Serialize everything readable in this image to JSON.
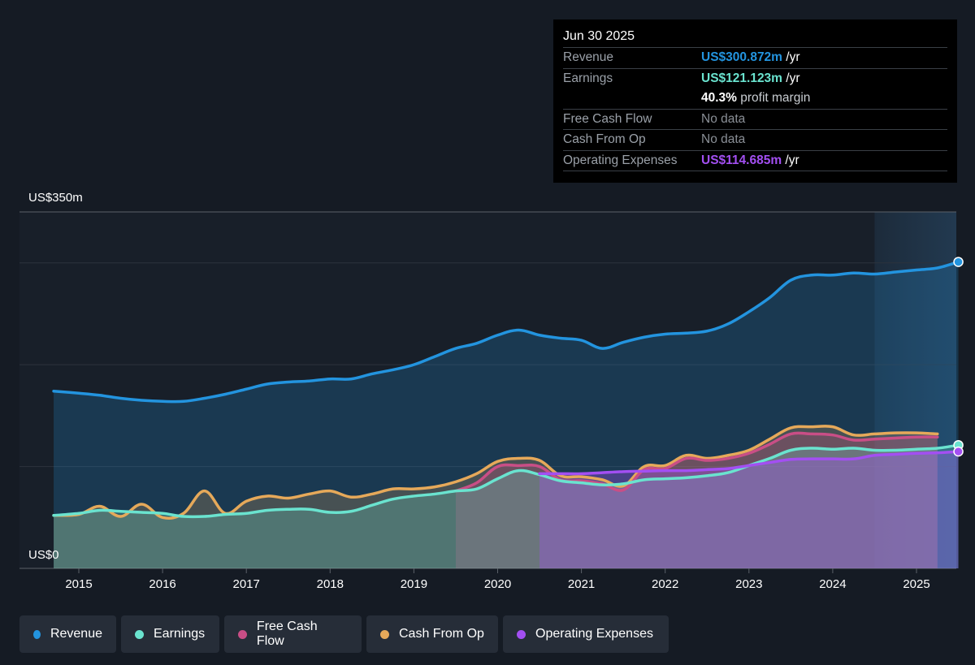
{
  "tooltip": {
    "date": "Jun 30 2025",
    "rows": [
      {
        "label": "Revenue",
        "value": "US$300.872m",
        "suffix": " /yr",
        "color": "#2394df"
      },
      {
        "label": "Earnings",
        "value": "US$121.123m",
        "suffix": " /yr",
        "color": "#6ae3cf"
      },
      {
        "label": "",
        "value": "40.3%",
        "suffix": " profit margin",
        "color": "#ffffff"
      },
      {
        "label": "Free Cash Flow",
        "value": "No data",
        "suffix": "",
        "color": "#8a8f96"
      },
      {
        "label": "Cash From Op",
        "value": "No data",
        "suffix": "",
        "color": "#8a8f96"
      },
      {
        "label": "Operating Expenses",
        "value": "US$114.685m",
        "suffix": " /yr",
        "color": "#a34ff2"
      }
    ]
  },
  "legend": [
    {
      "label": "Revenue",
      "color": "#2394df"
    },
    {
      "label": "Earnings",
      "color": "#6ae3cf"
    },
    {
      "label": "Free Cash Flow",
      "color": "#c94e86"
    },
    {
      "label": "Cash From Op",
      "color": "#e6a95a"
    },
    {
      "label": "Operating Expenses",
      "color": "#a34ff2"
    }
  ],
  "chart_data": {
    "type": "area",
    "ylabel_top": "US$350m",
    "ylabel_bottom": "US$0",
    "ylim": [
      0,
      350
    ],
    "xlim": [
      2014.55,
      2025.5
    ],
    "x_ticks": [
      "2015",
      "2016",
      "2017",
      "2018",
      "2019",
      "2020",
      "2021",
      "2022",
      "2023",
      "2024",
      "2025"
    ],
    "grid": true,
    "forecast_shade_from": 2024.5,
    "series": [
      {
        "name": "Revenue",
        "color": "#2394df",
        "x": [
          2014.7,
          2015.0,
          2015.25,
          2015.5,
          2015.75,
          2016.0,
          2016.25,
          2016.5,
          2016.75,
          2017.0,
          2017.25,
          2017.5,
          2017.75,
          2018.0,
          2018.25,
          2018.5,
          2018.75,
          2019.0,
          2019.25,
          2019.5,
          2019.75,
          2020.0,
          2020.25,
          2020.5,
          2020.75,
          2021.0,
          2021.25,
          2021.5,
          2021.75,
          2022.0,
          2022.25,
          2022.5,
          2022.75,
          2023.0,
          2023.25,
          2023.5,
          2023.75,
          2024.0,
          2024.25,
          2024.5,
          2024.75,
          2025.0,
          2025.25,
          2025.5
        ],
        "y": [
          174,
          172,
          170,
          167,
          165,
          164,
          164,
          167,
          171,
          176,
          181,
          183,
          184,
          186,
          186,
          191,
          195,
          200,
          208,
          216,
          221,
          229,
          234,
          229,
          226,
          224,
          216,
          222,
          227,
          230,
          231,
          233,
          240,
          252,
          266,
          283,
          288,
          288,
          290,
          289,
          291,
          293,
          295,
          300.9
        ]
      },
      {
        "name": "Earnings",
        "color": "#6ae3cf",
        "x": [
          2014.7,
          2015.0,
          2015.25,
          2015.5,
          2015.75,
          2016.0,
          2016.25,
          2016.5,
          2016.75,
          2017.0,
          2017.25,
          2017.5,
          2017.75,
          2018.0,
          2018.25,
          2018.5,
          2018.75,
          2019.0,
          2019.25,
          2019.5,
          2019.75,
          2020.0,
          2020.25,
          2020.5,
          2020.75,
          2021.0,
          2021.25,
          2021.5,
          2021.75,
          2022.0,
          2022.25,
          2022.5,
          2022.75,
          2023.0,
          2023.25,
          2023.5,
          2023.75,
          2024.0,
          2024.25,
          2024.5,
          2024.75,
          2025.0,
          2025.25,
          2025.5
        ],
        "y": [
          52,
          54,
          57,
          56,
          55,
          54,
          51,
          51,
          53,
          54,
          57,
          58,
          58,
          55,
          56,
          62,
          68,
          71,
          73,
          76,
          78,
          88,
          96,
          92,
          86,
          84,
          82,
          83,
          87,
          88,
          89,
          91,
          94,
          101,
          108,
          116,
          118,
          117,
          118,
          116,
          116,
          117,
          118,
          121
        ]
      },
      {
        "name": "Free Cash Flow",
        "color": "#c94e86",
        "x": [
          2019.5,
          2019.75,
          2020.0,
          2020.25,
          2020.5,
          2020.75,
          2021.0,
          2021.25,
          2021.5,
          2021.75,
          2022.0,
          2022.25,
          2022.5,
          2022.75,
          2023.0,
          2023.25,
          2023.5,
          2023.75,
          2024.0,
          2024.25,
          2024.5,
          2024.75,
          2025.0,
          2025.25
        ],
        "y": [
          76,
          84,
          100,
          101,
          100,
          87,
          86,
          83,
          77,
          97,
          98,
          108,
          106,
          108,
          113,
          122,
          132,
          132,
          131,
          126,
          127,
          128,
          129,
          129
        ]
      },
      {
        "name": "Cash From Op",
        "color": "#e6a95a",
        "x": [
          2014.7,
          2015.0,
          2015.25,
          2015.5,
          2015.75,
          2016.0,
          2016.25,
          2016.5,
          2016.75,
          2017.0,
          2017.25,
          2017.5,
          2017.75,
          2018.0,
          2018.25,
          2018.5,
          2018.75,
          2019.0,
          2019.25,
          2019.5,
          2019.75,
          2020.0,
          2020.25,
          2020.5,
          2020.75,
          2021.0,
          2021.25,
          2021.5,
          2021.75,
          2022.0,
          2022.25,
          2022.5,
          2022.75,
          2023.0,
          2023.25,
          2023.5,
          2023.75,
          2024.0,
          2024.25,
          2024.5,
          2024.75,
          2025.0,
          2025.25
        ],
        "y": [
          52,
          53,
          61,
          51,
          63,
          50,
          54,
          76,
          54,
          66,
          71,
          69,
          73,
          76,
          70,
          73,
          78,
          78,
          80,
          85,
          93,
          105,
          108,
          106,
          91,
          90,
          87,
          81,
          100,
          101,
          111,
          108,
          111,
          116,
          127,
          138,
          139,
          139,
          131,
          132,
          133,
          133,
          132
        ]
      },
      {
        "name": "Operating Expenses",
        "color": "#a34ff2",
        "x": [
          2020.5,
          2020.75,
          2021.0,
          2021.25,
          2021.5,
          2021.75,
          2022.0,
          2022.25,
          2022.5,
          2022.75,
          2023.0,
          2023.25,
          2023.5,
          2023.75,
          2024.0,
          2024.25,
          2024.5,
          2024.75,
          2025.0,
          2025.25,
          2025.5
        ],
        "y": [
          93,
          93,
          93,
          94,
          95,
          95.5,
          96,
          96,
          97,
          98,
          101,
          104,
          107,
          107.5,
          107.5,
          107.5,
          111,
          112,
          113,
          113.5,
          114.7
        ]
      }
    ]
  }
}
